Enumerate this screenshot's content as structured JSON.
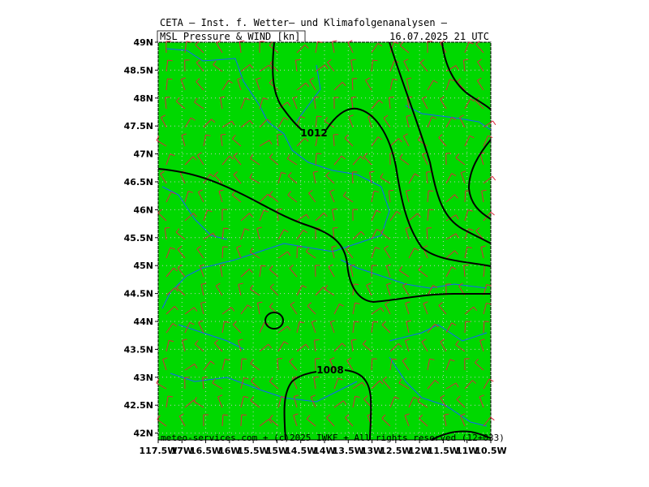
{
  "header": {
    "title": "CETA — Inst. f. Wetter— und Klimafolgenanalysen —",
    "product": "MSL_Pressure_&_WIND_[kn]",
    "valid": "16.07.2025 21 UTC"
  },
  "lat_labels": [
    "49N",
    "48.5N",
    "48N",
    "47.5N",
    "47N",
    "46.5N",
    "46N",
    "45.5N",
    "45N",
    "44.5N",
    "44N",
    "43.5N",
    "43N",
    "42.5N",
    "42N"
  ],
  "lon_labels": [
    "117.5W",
    "17W",
    "16.5W",
    "16W",
    "15.5W",
    "15W",
    "14.5W",
    "14W",
    "13.5W",
    "13W",
    "12.5W",
    "12W",
    "11.5W",
    "11W",
    "10.5W"
  ],
  "contour_labels": [
    "1012",
    "1008"
  ],
  "footer": "meteo-services.com + (c)2025 IWKF + All rights reserved (12+033)"
}
